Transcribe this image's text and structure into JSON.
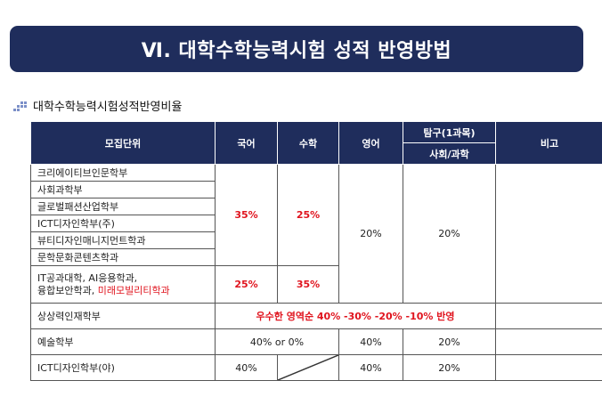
{
  "title": "Ⅵ. 대학수학능력시험 성적 반영방법",
  "subtitle": "대학수학능력시험성적반영비율",
  "headers": {
    "unit": "모집단위",
    "korean": "국어",
    "math": "수학",
    "english": "영어",
    "inquiry": "탐구(1과목)",
    "inquiry_sub": "사회/과학",
    "note": "비고"
  },
  "group1": {
    "units": [
      "크리에이티브인문학부",
      "사회과학부",
      "글로벌패션산업학부",
      "ICT디자인학부(주)",
      "뷰티디자인매니지먼트학과",
      "문학문화콘텐츠학과"
    ],
    "korean": "35%",
    "math": "25%"
  },
  "group2": {
    "unit_line1": "IT공과대학,  AI응용학과,",
    "unit_line2_prefix": "융합보안학과,  ",
    "unit_line2_red": "미래모빌리티학과",
    "korean": "25%",
    "math": "35%"
  },
  "shared": {
    "english": "20%",
    "inquiry": "20%"
  },
  "sangsang": {
    "unit": "상상력인재학부",
    "text": "우수한  영역순  40%  -30%  -20%  -10%  반영"
  },
  "arts": {
    "unit": "예술학부",
    "kor_math": "40%  or  0%",
    "english": "40%",
    "inquiry": "20%"
  },
  "ict_night": {
    "unit": "ICT디자인학부(야)",
    "korean": "40%",
    "english": "40%",
    "inquiry": "20%"
  }
}
